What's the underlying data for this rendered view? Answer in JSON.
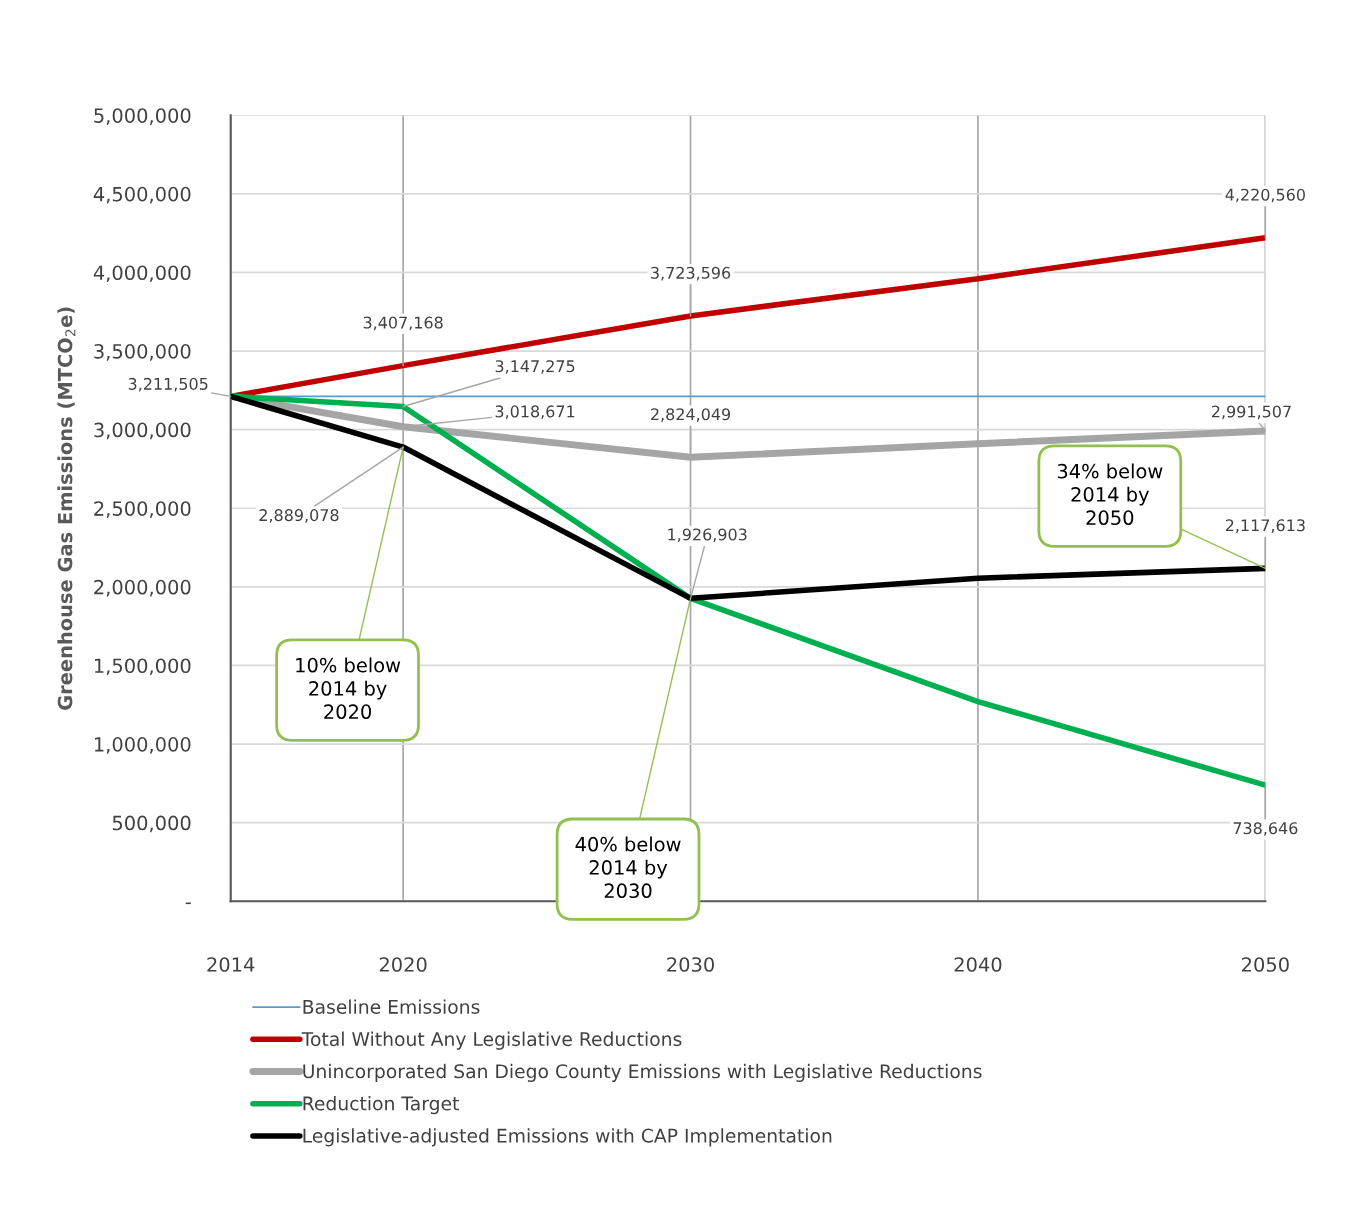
{
  "chart_data": {
    "type": "line",
    "ylabel": "Greenhouse Gas Emissions (MTCO$_{2}$e)",
    "x": [
      2014,
      2020,
      2030,
      2040,
      2050
    ],
    "xlim": [
      2014,
      2050
    ],
    "xticks": [
      2014,
      2020,
      2030,
      2040,
      2050
    ],
    "ylim": [
      0,
      5000000
    ],
    "yticks": [
      {
        "value": 0,
        "label": "-"
      },
      {
        "value": 500000,
        "label": "500,000"
      },
      {
        "value": 1000000,
        "label": "1,000,000"
      },
      {
        "value": 1500000,
        "label": "1,500,000"
      },
      {
        "value": 2000000,
        "label": "2,000,000"
      },
      {
        "value": 2500000,
        "label": "2,500,000"
      },
      {
        "value": 3000000,
        "label": "3,000,000"
      },
      {
        "value": 3500000,
        "label": "3,500,000"
      },
      {
        "value": 4000000,
        "label": "4,000,000"
      },
      {
        "value": 4500000,
        "label": "4,500,000"
      },
      {
        "value": 5000000,
        "label": "5,000,000"
      }
    ],
    "grid": true,
    "legend": "bottom",
    "marker": "none",
    "line_style": "solid",
    "series": [
      {
        "name": "Baseline Emissions",
        "color": "#5b9bd5",
        "values": [
          3211505,
          3211505,
          3211505,
          3211505,
          3211505
        ],
        "value_labels": [
          "3,211,505",
          null,
          null,
          null,
          null
        ]
      },
      {
        "name": "Total Without Any Legislative Reductions",
        "color": "#c00000",
        "values": [
          3211505,
          3407168,
          3723596,
          3960000,
          4220560
        ],
        "value_labels": [
          null,
          "3,407,168",
          "3,723,596",
          null,
          "4,220,560"
        ]
      },
      {
        "name": "Unincorporated San Diego County Emissions with Legislative Reductions",
        "color": "#a5a5a5",
        "values": [
          3211505,
          3018671,
          2824049,
          2910000,
          2991507
        ],
        "value_labels": [
          null,
          "3,018,671",
          "2,824,049",
          null,
          "2,991,507"
        ]
      },
      {
        "name": "Reduction Target",
        "color": "#00b050",
        "values": [
          3211505,
          3147275,
          1926903,
          1270000,
          738646
        ],
        "value_labels": [
          null,
          "3,147,275",
          null,
          null,
          "738,646"
        ]
      },
      {
        "name": "Legislative-adjusted Emissions with CAP Implementation",
        "color": "#000000",
        "values": [
          3211505,
          2889078,
          1926903,
          2055000,
          2117613
        ],
        "value_labels": [
          null,
          "2,889,078",
          "1,926,903",
          null,
          "2,117,613"
        ]
      }
    ],
    "annotations": [
      {
        "text": "10% below\n2014 by\n2020",
        "x": 2020,
        "y": 2889078
      },
      {
        "text": "40% below\n2014 by\n2030",
        "x": 2030,
        "y": 1926903
      },
      {
        "text": "34% below\n2014 by\n2050",
        "x": 2050,
        "y": 2117613
      }
    ]
  }
}
